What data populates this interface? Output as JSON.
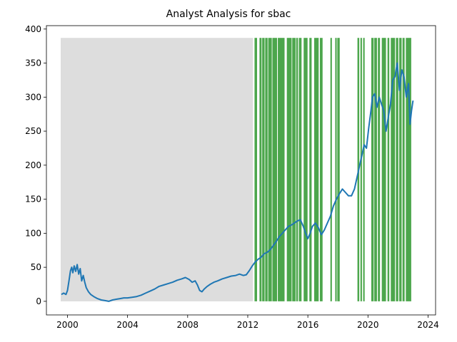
{
  "chart_data": {
    "type": "line",
    "title": "Analyst Analysis for sbac",
    "xlabel": "",
    "ylabel": "",
    "xlim": [
      1998.6,
      2024.5
    ],
    "ylim": [
      -20,
      405
    ],
    "grid": false,
    "legend": "none",
    "x_ticks": [
      2000,
      2004,
      2008,
      2012,
      2016,
      2020,
      2024
    ],
    "y_ticks": [
      0,
      50,
      100,
      150,
      200,
      250,
      300,
      350,
      400
    ],
    "colors": {
      "line": "#1f77b4",
      "shade_gray": "#dddddd",
      "shade_green": "#4ca64c"
    },
    "shade_top": 387,
    "gray_band": {
      "x0": 1999.55,
      "x1": 2012.35
    },
    "green_bands": [
      [
        2012.45,
        2012.62
      ],
      [
        2012.78,
        2012.92
      ],
      [
        2012.96,
        2013.12
      ],
      [
        2013.16,
        2013.32
      ],
      [
        2013.36,
        2013.6
      ],
      [
        2013.64,
        2013.95
      ],
      [
        2014.0,
        2014.45
      ],
      [
        2014.6,
        2014.92
      ],
      [
        2014.96,
        2015.18
      ],
      [
        2015.22,
        2015.34
      ],
      [
        2015.4,
        2015.58
      ],
      [
        2015.72,
        2015.98
      ],
      [
        2016.1,
        2016.25
      ],
      [
        2016.42,
        2016.72
      ],
      [
        2016.8,
        2016.98
      ],
      [
        2017.5,
        2017.6
      ],
      [
        2017.82,
        2017.92
      ],
      [
        2017.96,
        2018.12
      ],
      [
        2019.3,
        2019.42
      ],
      [
        2019.5,
        2019.6
      ],
      [
        2019.68,
        2019.78
      ],
      [
        2020.22,
        2020.38
      ],
      [
        2020.42,
        2020.6
      ],
      [
        2020.66,
        2020.8
      ],
      [
        2020.92,
        2021.2
      ],
      [
        2021.3,
        2021.42
      ],
      [
        2021.52,
        2021.8
      ],
      [
        2021.86,
        2022.02
      ],
      [
        2022.08,
        2022.24
      ],
      [
        2022.3,
        2022.44
      ],
      [
        2022.52,
        2022.88
      ]
    ],
    "series": [
      {
        "x": [
          1999.6,
          1999.75,
          1999.9,
          2000.0,
          2000.1,
          2000.2,
          2000.28,
          2000.36,
          2000.45,
          2000.55,
          2000.65,
          2000.75,
          2000.85,
          2000.95,
          2001.05,
          2001.15,
          2001.25,
          2001.4,
          2001.55,
          2001.75,
          2002.0,
          2002.25,
          2002.5,
          2002.75,
          2003.0,
          2003.25,
          2003.5,
          2003.75,
          2004.0,
          2004.3,
          2004.6,
          2004.9,
          2005.2,
          2005.5,
          2005.8,
          2006.1,
          2006.4,
          2006.7,
          2007.0,
          2007.3,
          2007.6,
          2007.85,
          2008.1,
          2008.3,
          2008.5,
          2008.65,
          2008.8,
          2008.95,
          2009.1,
          2009.3,
          2009.5,
          2009.75,
          2010.0,
          2010.3,
          2010.6,
          2010.9,
          2011.2,
          2011.45,
          2011.7,
          2011.9,
          2012.1,
          2012.3,
          2012.5,
          2012.7,
          2012.9,
          2013.1,
          2013.3,
          2013.5,
          2013.7,
          2013.9,
          2014.1,
          2014.3,
          2014.5,
          2014.7,
          2014.9,
          2015.1,
          2015.3,
          2015.5,
          2015.7,
          2015.85,
          2016.0,
          2016.15,
          2016.3,
          2016.5,
          2016.7,
          2016.9,
          2017.1,
          2017.3,
          2017.5,
          2017.7,
          2017.9,
          2018.1,
          2018.3,
          2018.5,
          2018.7,
          2018.9,
          2019.1,
          2019.3,
          2019.45,
          2019.6,
          2019.75,
          2019.9,
          2020.05,
          2020.2,
          2020.3,
          2020.45,
          2020.6,
          2020.75,
          2020.9,
          2021.05,
          2021.2,
          2021.35,
          2021.5,
          2021.65,
          2021.8,
          2021.95,
          2022.1,
          2022.25,
          2022.4,
          2022.55,
          2022.7,
          2022.8,
          2022.9,
          2023.0
        ],
        "y": [
          10,
          12,
          10,
          16,
          30,
          45,
          50,
          42,
          52,
          44,
          54,
          40,
          48,
          30,
          38,
          28,
          20,
          14,
          10,
          7,
          4,
          2,
          1,
          0,
          2,
          3,
          4,
          5,
          5,
          6,
          7,
          9,
          12,
          15,
          18,
          22,
          24,
          26,
          28,
          31,
          33,
          35,
          32,
          28,
          30,
          24,
          16,
          14,
          18,
          22,
          25,
          28,
          30,
          33,
          35,
          37,
          38,
          40,
          38,
          39,
          45,
          52,
          58,
          62,
          65,
          70,
          72,
          76,
          82,
          88,
          95,
          100,
          105,
          110,
          112,
          115,
          118,
          120,
          110,
          100,
          92,
          100,
          110,
          115,
          108,
          98,
          105,
          115,
          125,
          140,
          150,
          158,
          165,
          160,
          155,
          155,
          165,
          185,
          200,
          215,
          230,
          225,
          255,
          280,
          300,
          305,
          285,
          300,
          290,
          280,
          250,
          270,
          290,
          325,
          330,
          350,
          310,
          340,
          330,
          300,
          320,
          260,
          280,
          295
        ]
      }
    ]
  }
}
